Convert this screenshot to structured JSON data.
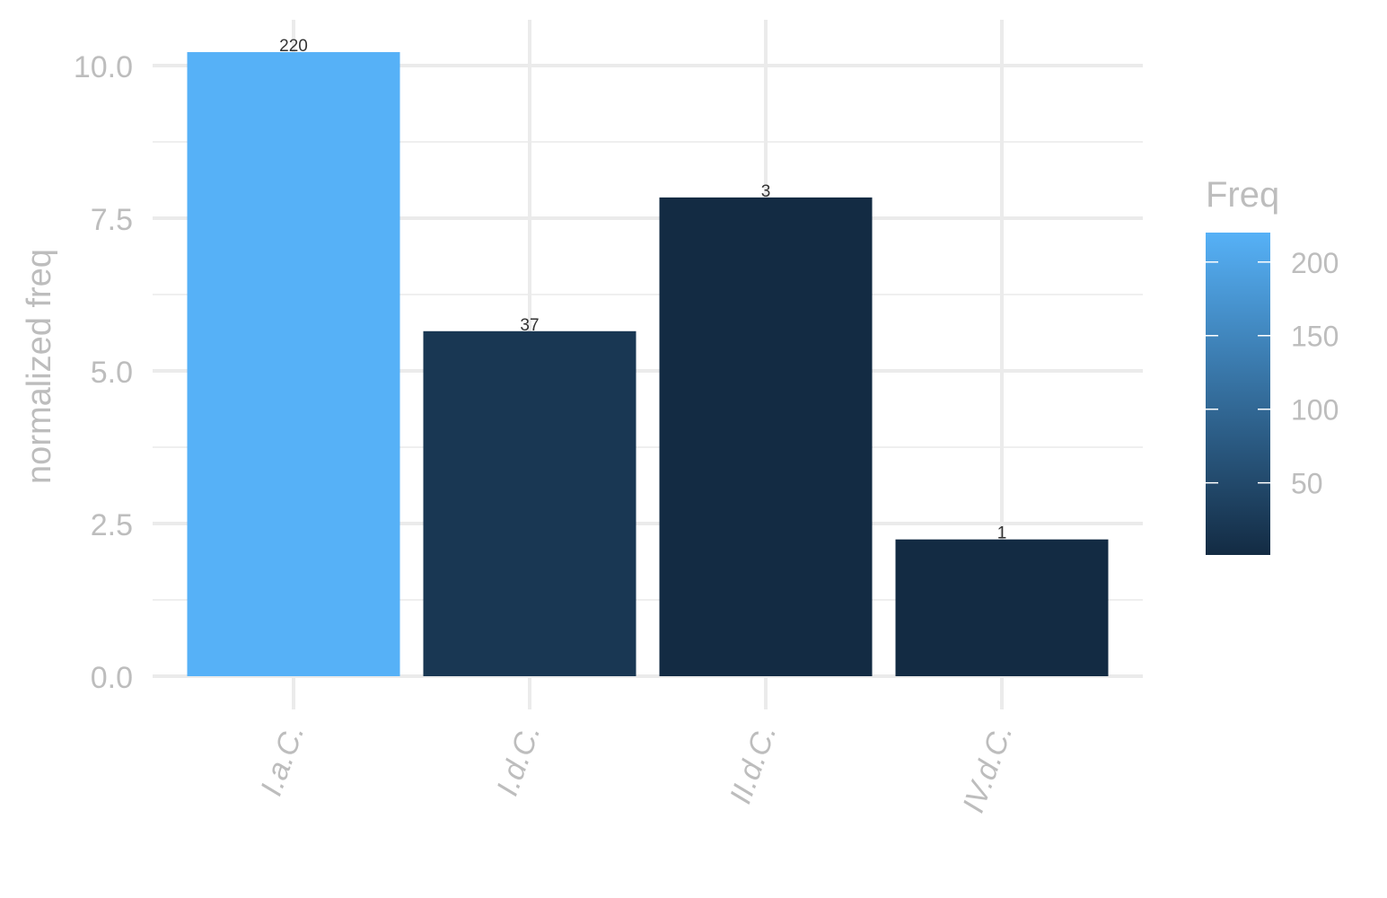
{
  "chart_data": {
    "type": "bar",
    "title": "",
    "xlabel": "",
    "ylabel": "normalized freq",
    "categories": [
      "I.a.C.",
      "I.d.C.",
      "II.d.C.",
      "IV.d.C."
    ],
    "values": [
      10.22,
      5.65,
      7.84,
      2.24
    ],
    "fill_values": [
      220,
      37,
      3,
      1
    ],
    "bar_labels": [
      "220",
      "37",
      "3",
      "1"
    ],
    "ylim": [
      0,
      10.5
    ],
    "yticks": [
      0,
      2.5,
      5,
      7.5,
      10
    ],
    "ytick_labels": [
      "0.0",
      "2.5",
      "5.0",
      "7.5",
      "10.0"
    ],
    "grid": true,
    "legend": {
      "title": "Freq",
      "placement": "right",
      "type": "colorbar",
      "limits": [
        1,
        220
      ],
      "ticks": [
        50,
        100,
        150,
        200
      ],
      "tick_labels": [
        "50",
        "100",
        "150",
        "200"
      ],
      "low_color": "#132B43",
      "high_color": "#56B1F7"
    }
  }
}
